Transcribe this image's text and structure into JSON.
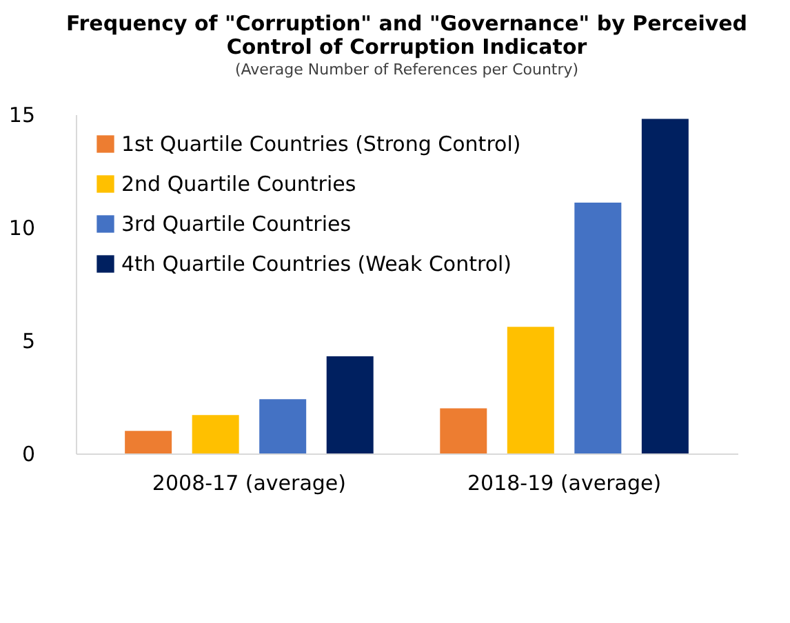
{
  "chart_data": {
    "type": "bar",
    "title": "Frequency of \"Corruption\" and \"Governance\" by Perceived Control of Corruption Indicator",
    "subtitle": "(Average Number of References per Country)",
    "categories": [
      "2008-17 (average)",
      "2018-19 (average)"
    ],
    "series": [
      {
        "name": "1st Quartile Countries (Strong Control)",
        "color": "#ed7d31",
        "values": [
          1.0,
          2.0
        ]
      },
      {
        "name": "2nd Quartile Countries",
        "color": "#ffc000",
        "values": [
          1.7,
          5.6
        ]
      },
      {
        "name": "3rd Quartile Countries",
        "color": "#4472c4",
        "values": [
          2.4,
          11.1
        ]
      },
      {
        "name": "4th Quartile Countries (Weak Control)",
        "color": "#002060",
        "values": [
          4.3,
          14.8
        ]
      }
    ],
    "ylim": [
      0,
      15
    ],
    "yticks": [
      0,
      5,
      10,
      15
    ],
    "grid": false,
    "legend": "top left"
  }
}
